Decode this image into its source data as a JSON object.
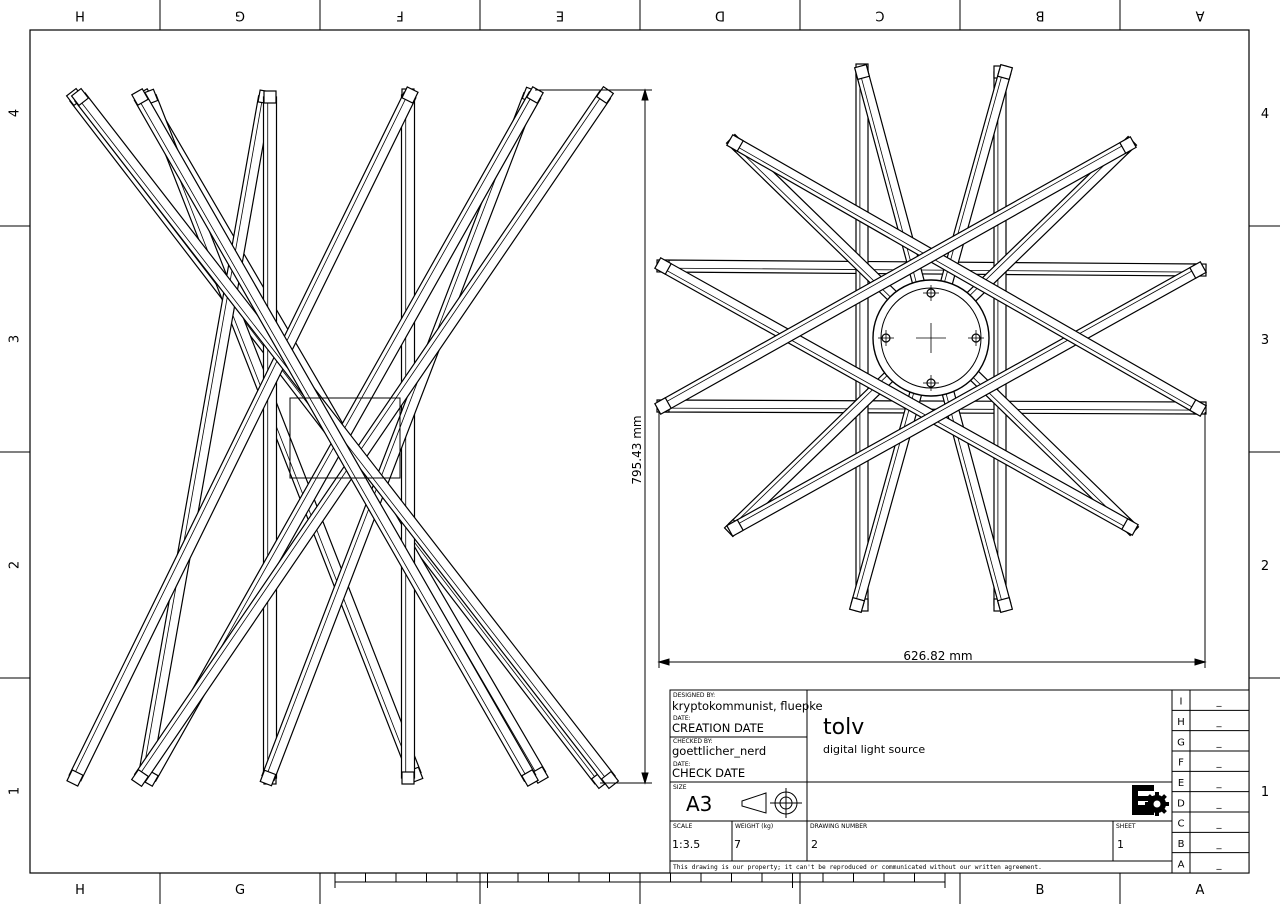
{
  "border": {
    "top_zone_letters": [
      "H",
      "G",
      "F",
      "E",
      "D",
      "C",
      "B",
      "A"
    ],
    "bottom_zone_letters": [
      "H",
      "G",
      "",
      "",
      "",
      "",
      "B",
      "A"
    ],
    "row_numbers": [
      "4",
      "3",
      "2",
      "1"
    ]
  },
  "dimensions": {
    "height": "795.43 mm",
    "width": "626.82 mm"
  },
  "title_block": {
    "designed_by_label": "DESIGNED BY:",
    "designed_by": "kryptokommunist, fluepke",
    "date_label": "DATE:",
    "creation_date": "CREATION DATE",
    "checked_by_label": "CHECKED BY:",
    "checked_by": "goettlicher_nerd",
    "date2_label": "DATE:",
    "check_date": "CHECK DATE",
    "size_label": "SIZE",
    "size": "A3",
    "scale_label": "SCALE",
    "scale": "1:3.5",
    "weight_label": "WEIGHT (kg)",
    "weight": "7",
    "drawing_number_label": "DRAWING NUMBER",
    "drawing_number": "2",
    "sheet_label": "SHEET",
    "sheet": "1",
    "title": "tolv",
    "subtitle": "digital light source",
    "notice": "This drawing is our property; it can't be reproduced or communicated without our written agreement.",
    "revisions": [
      {
        "letter": "I",
        "value": "_"
      },
      {
        "letter": "H",
        "value": "_"
      },
      {
        "letter": "G",
        "value": "_"
      },
      {
        "letter": "F",
        "value": "_"
      },
      {
        "letter": "E",
        "value": "_"
      },
      {
        "letter": "D",
        "value": "_"
      },
      {
        "letter": "C",
        "value": "_"
      },
      {
        "letter": "B",
        "value": "_"
      },
      {
        "letter": "A",
        "value": "_"
      }
    ]
  },
  "icons": {
    "projection_symbol": "first-angle-projection-icon",
    "logo": "freecad-logo"
  }
}
